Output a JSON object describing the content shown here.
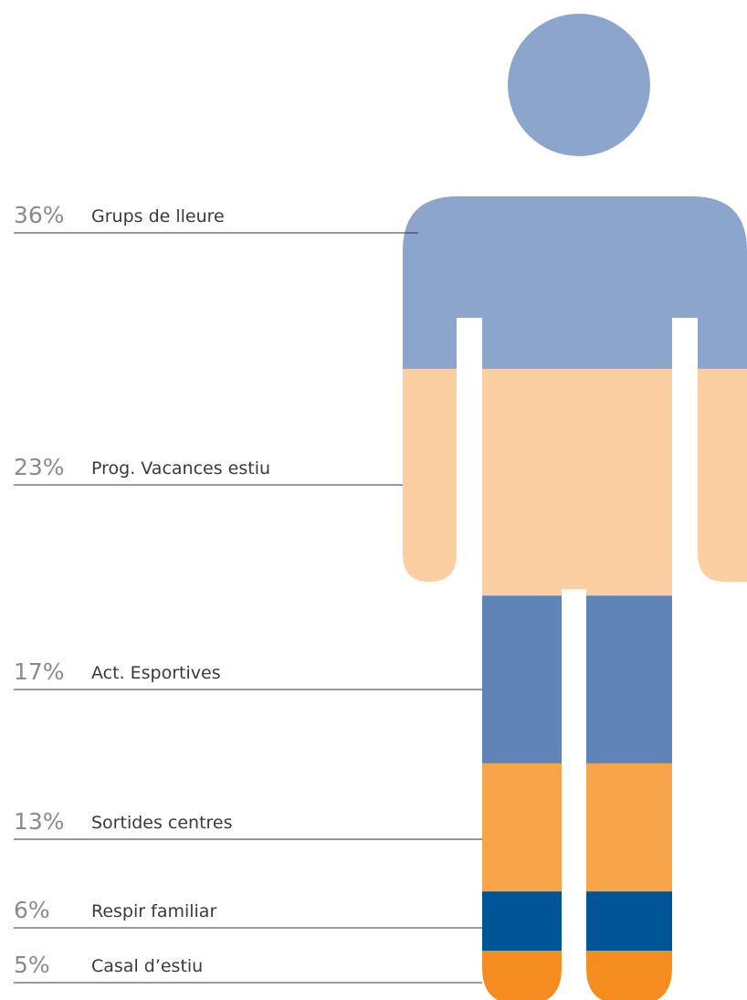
{
  "chart_data": {
    "type": "pictogram",
    "categories": [
      "Grups de lleure",
      "Prog. Vacances estiu",
      "Act. Esportives",
      "Sortides centres",
      "Respir familiar",
      "Casal d’estiu"
    ],
    "values": [
      36,
      23,
      17,
      13,
      6,
      5
    ],
    "value_labels": [
      "36%",
      "23%",
      "17%",
      "13%",
      "6%",
      "5%"
    ],
    "colors": [
      "#8ca5cc",
      "#fbcfa1",
      "#5e84b8",
      "#f8a448",
      "#005596",
      "#f48c1f"
    ]
  }
}
